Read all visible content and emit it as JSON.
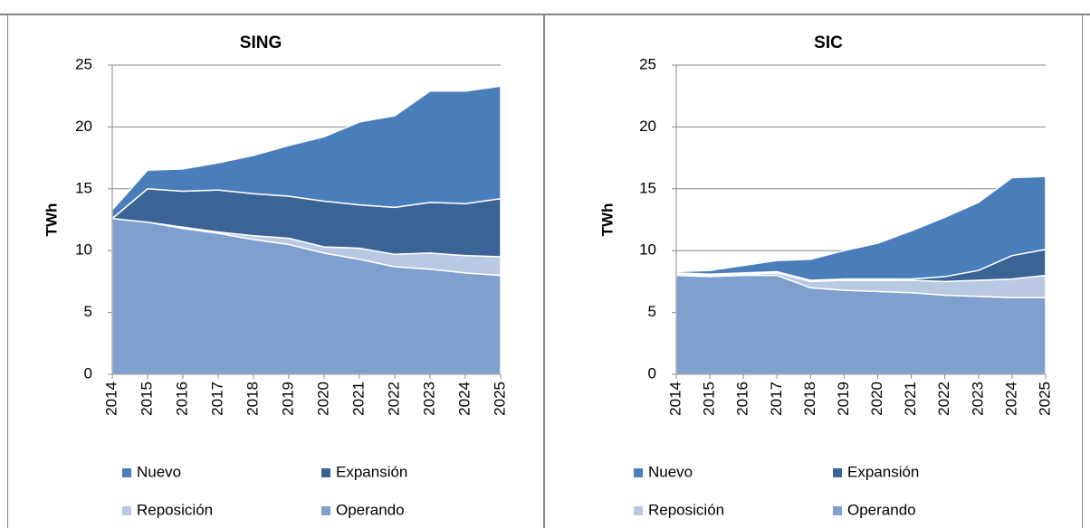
{
  "chart_data": [
    {
      "type": "stacked_area",
      "title": "SING",
      "ylabel": "TWh",
      "categories": [
        "2014",
        "2015",
        "2016",
        "2017",
        "2018",
        "2019",
        "2020",
        "2021",
        "2022",
        "2023",
        "2024",
        "2025"
      ],
      "ylim": [
        0,
        25
      ],
      "yticks": [
        0,
        5,
        10,
        15,
        20,
        25
      ],
      "grid": true,
      "series": [
        {
          "name": "Nuevo",
          "color": "#4a7ebb",
          "values": [
            0.7,
            1.5,
            1.8,
            2.2,
            3.1,
            4.1,
            5.2,
            6.7,
            7.4,
            9.0,
            9.1,
            9.1
          ]
        },
        {
          "name": "Expansión",
          "color": "#3c6396",
          "values": [
            0,
            2.7,
            2.9,
            3.4,
            3.4,
            3.4,
            3.7,
            3.5,
            3.8,
            4.1,
            4.2,
            4.7
          ]
        },
        {
          "name": "Reposición",
          "color": "#b9c9e3",
          "values": [
            0,
            0,
            0.1,
            0.1,
            0.3,
            0.5,
            0.5,
            0.9,
            1.0,
            1.3,
            1.4,
            1.5
          ]
        },
        {
          "name": "Operando",
          "color": "#7f9fcf",
          "values": [
            12.6,
            12.3,
            11.8,
            11.4,
            10.9,
            10.5,
            9.8,
            9.3,
            8.7,
            8.5,
            8.2,
            8.0
          ]
        }
      ]
    },
    {
      "type": "stacked_area",
      "title": "SIC",
      "ylabel": "TWh",
      "categories": [
        "2014",
        "2015",
        "2016",
        "2017",
        "2018",
        "2019",
        "2020",
        "2021",
        "2022",
        "2023",
        "2024",
        "2025"
      ],
      "ylim": [
        0,
        25
      ],
      "yticks": [
        0,
        5,
        10,
        15,
        20,
        25
      ],
      "grid": true,
      "series": [
        {
          "name": "Nuevo",
          "color": "#4a7ebb",
          "values": [
            0.1,
            0.3,
            0.6,
            0.9,
            1.7,
            2.3,
            2.9,
            3.9,
            4.8,
            5.5,
            6.3,
            5.9
          ]
        },
        {
          "name": "Expansión",
          "color": "#3c6396",
          "values": [
            0.1,
            0.1,
            0.1,
            0.1,
            0.1,
            0.1,
            0.1,
            0.1,
            0.4,
            0.8,
            1.9,
            2.1
          ]
        },
        {
          "name": "Reposición",
          "color": "#b9c9e3",
          "values": [
            0.1,
            0.1,
            0.1,
            0.2,
            0.5,
            0.8,
            0.9,
            1.0,
            1.1,
            1.3,
            1.5,
            1.8
          ]
        },
        {
          "name": "Operando",
          "color": "#7f9fcf",
          "values": [
            8.0,
            7.9,
            8.0,
            8.0,
            7.0,
            6.8,
            6.7,
            6.6,
            6.4,
            6.3,
            6.2,
            6.2
          ]
        }
      ]
    }
  ]
}
